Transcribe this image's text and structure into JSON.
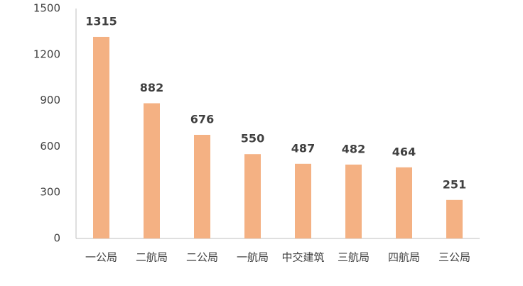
{
  "chart_data": {
    "type": "bar",
    "categories": [
      "一公局",
      "二航局",
      "二公局",
      "一航局",
      "中交建筑",
      "三航局",
      "四航局",
      "三公局"
    ],
    "values": [
      1315,
      882,
      676,
      550,
      487,
      482,
      464,
      251
    ],
    "color": "#f4b183",
    "ylim": [
      0,
      1500
    ],
    "yticks": [
      0,
      300,
      600,
      900,
      1200,
      1500
    ],
    "grid": false
  }
}
